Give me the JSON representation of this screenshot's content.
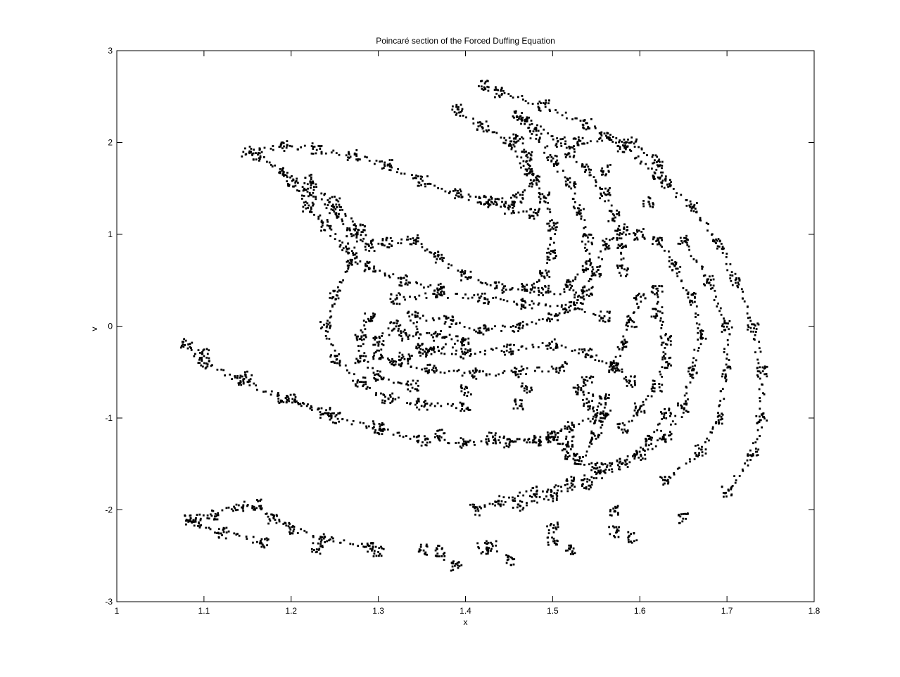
{
  "chart_data": {
    "type": "scatter",
    "title": "Poincaré section of the Forced Duffing Equation",
    "xlabel": "x",
    "ylabel": "v",
    "xlim": [
      1,
      1.8
    ],
    "ylim": [
      -3,
      3
    ],
    "xticks": [
      "1",
      "1.1",
      "1.2",
      "1.3",
      "1.4",
      "1.5",
      "1.6",
      "1.7",
      "1.8"
    ],
    "yticks": [
      "-3",
      "-2",
      "-1",
      "0",
      "1",
      "2",
      "3"
    ],
    "grid": false,
    "marker_color": "#000000",
    "background": "#ffffff",
    "series": [
      {
        "values": [
          [
            1.15,
            1.9
          ],
          [
            1.19,
            1.96
          ],
          [
            1.23,
            1.93
          ],
          [
            1.27,
            1.86
          ],
          [
            1.31,
            1.75
          ],
          [
            1.35,
            1.58
          ],
          [
            1.39,
            1.44
          ],
          [
            1.42,
            1.36
          ],
          [
            1.45,
            1.28
          ],
          [
            1.48,
            1.22
          ],
          [
            1.16,
            1.86
          ],
          [
            1.19,
            1.68
          ],
          [
            1.22,
            1.46
          ],
          [
            1.25,
            1.24
          ],
          [
            1.27,
            1.02
          ],
          [
            1.29,
            0.88
          ],
          [
            1.31,
            0.9
          ],
          [
            1.34,
            0.95
          ],
          [
            1.37,
            0.75
          ],
          [
            1.4,
            0.55
          ],
          [
            1.44,
            0.42
          ],
          [
            1.49,
            0.38
          ],
          [
            1.54,
            0.37
          ],
          [
            1.22,
            1.6
          ],
          [
            1.25,
            1.35
          ],
          [
            1.28,
            1.05
          ],
          [
            1.27,
            0.7
          ],
          [
            1.25,
            0.35
          ],
          [
            1.24,
            0.0
          ],
          [
            1.25,
            -0.35
          ],
          [
            1.28,
            -0.62
          ],
          [
            1.31,
            -0.78
          ],
          [
            1.35,
            -0.85
          ],
          [
            1.4,
            -0.88
          ],
          [
            1.46,
            -0.85
          ],
          [
            1.08,
            -0.2
          ],
          [
            1.1,
            -0.4
          ],
          [
            1.14,
            -0.58
          ],
          [
            1.19,
            -0.78
          ],
          [
            1.24,
            -0.95
          ],
          [
            1.3,
            -1.08
          ],
          [
            1.37,
            -1.18
          ],
          [
            1.43,
            -1.22
          ],
          [
            1.48,
            -1.25
          ],
          [
            1.52,
            -1.26
          ],
          [
            1.1,
            -0.3
          ],
          [
            1.15,
            -0.55
          ],
          [
            1.2,
            -0.8
          ],
          [
            1.25,
            -1.0
          ],
          [
            1.3,
            -1.12
          ],
          [
            1.35,
            -1.24
          ],
          [
            1.4,
            -1.28
          ],
          [
            1.45,
            -1.26
          ],
          [
            1.5,
            -1.2
          ],
          [
            1.08,
            -2.1
          ],
          [
            1.11,
            -2.05
          ],
          [
            1.14,
            -1.96
          ],
          [
            1.16,
            -1.95
          ],
          [
            1.18,
            -2.1
          ],
          [
            1.2,
            -2.2
          ],
          [
            1.24,
            -2.32
          ],
          [
            1.29,
            -2.4
          ],
          [
            1.35,
            -2.44
          ],
          [
            1.42,
            -2.42
          ],
          [
            1.5,
            -2.36
          ],
          [
            1.57,
            -2.24
          ],
          [
            1.09,
            -2.15
          ],
          [
            1.12,
            -2.25
          ],
          [
            1.17,
            -2.35
          ],
          [
            1.23,
            -2.42
          ],
          [
            1.3,
            -2.46
          ],
          [
            1.37,
            -2.45
          ],
          [
            1.39,
            -2.62
          ],
          [
            1.45,
            -2.55
          ],
          [
            1.52,
            -2.44
          ],
          [
            1.59,
            -2.3
          ],
          [
            1.65,
            -2.1
          ],
          [
            1.7,
            -1.8
          ],
          [
            1.73,
            -1.4
          ],
          [
            1.74,
            -1.0
          ],
          [
            1.74,
            -0.5
          ],
          [
            1.73,
            0.0
          ],
          [
            1.71,
            0.5
          ],
          [
            1.69,
            0.9
          ],
          [
            1.66,
            1.3
          ],
          [
            1.62,
            1.65
          ],
          [
            1.58,
            1.95
          ],
          [
            1.54,
            2.2
          ],
          [
            1.49,
            2.4
          ],
          [
            1.44,
            2.55
          ],
          [
            1.42,
            2.62
          ],
          [
            1.43,
            -2.4
          ],
          [
            1.5,
            -2.2
          ],
          [
            1.57,
            -2.0
          ],
          [
            1.63,
            -1.7
          ],
          [
            1.67,
            -1.35
          ],
          [
            1.69,
            -1.0
          ],
          [
            1.7,
            -0.5
          ],
          [
            1.7,
            0.0
          ],
          [
            1.68,
            0.5
          ],
          [
            1.65,
            0.95
          ],
          [
            1.61,
            1.35
          ],
          [
            1.56,
            1.7
          ],
          [
            1.51,
            2.0
          ],
          [
            1.47,
            2.25
          ],
          [
            1.41,
            -2.0
          ],
          [
            1.44,
            -1.9
          ],
          [
            1.48,
            -1.8
          ],
          [
            1.52,
            -1.7
          ],
          [
            1.56,
            -1.55
          ],
          [
            1.6,
            -1.4
          ],
          [
            1.63,
            -1.2
          ],
          [
            1.65,
            -0.9
          ],
          [
            1.66,
            -0.5
          ],
          [
            1.67,
            -0.1
          ],
          [
            1.66,
            0.3
          ],
          [
            1.64,
            0.65
          ],
          [
            1.62,
            0.95
          ],
          [
            1.46,
            -1.95
          ],
          [
            1.5,
            -1.85
          ],
          [
            1.54,
            -1.72
          ],
          [
            1.58,
            -1.5
          ],
          [
            1.61,
            -1.25
          ],
          [
            1.63,
            -0.95
          ],
          [
            1.6,
            1.0
          ],
          [
            1.58,
            1.05
          ],
          [
            1.56,
            0.9
          ],
          [
            1.55,
            0.6
          ],
          [
            1.53,
            0.3
          ],
          [
            1.5,
            0.1
          ],
          [
            1.46,
            0.0
          ],
          [
            1.42,
            -0.05
          ],
          [
            1.38,
            0.05
          ],
          [
            1.34,
            0.1
          ],
          [
            1.35,
            -0.25
          ],
          [
            1.4,
            -0.3
          ],
          [
            1.45,
            -0.25
          ],
          [
            1.5,
            -0.2
          ],
          [
            1.54,
            -0.3
          ],
          [
            1.57,
            -0.45
          ],
          [
            1.32,
            0.0
          ],
          [
            1.3,
            -0.15
          ],
          [
            1.3,
            -0.3
          ],
          [
            1.32,
            -0.4
          ],
          [
            1.36,
            -0.48
          ],
          [
            1.41,
            -0.52
          ],
          [
            1.46,
            -0.5
          ],
          [
            1.51,
            -0.45
          ],
          [
            1.33,
            -0.1
          ],
          [
            1.37,
            -0.1
          ],
          [
            1.4,
            -0.15
          ],
          [
            1.36,
            -0.28
          ],
          [
            1.33,
            -0.35
          ],
          [
            1.29,
            0.1
          ],
          [
            1.28,
            -0.1
          ],
          [
            1.28,
            -0.35
          ],
          [
            1.3,
            -0.55
          ],
          [
            1.34,
            -0.65
          ],
          [
            1.4,
            -0.7
          ],
          [
            1.47,
            -0.68
          ],
          [
            1.54,
            -0.6
          ],
          [
            1.32,
            0.3
          ],
          [
            1.37,
            0.35
          ],
          [
            1.42,
            0.3
          ],
          [
            1.47,
            0.25
          ],
          [
            1.52,
            0.2
          ],
          [
            1.56,
            0.1
          ],
          [
            1.53,
            -0.7
          ],
          [
            1.56,
            -0.8
          ],
          [
            1.55,
            -1.0
          ],
          [
            1.52,
            -1.1
          ],
          [
            1.5,
            -1.2
          ],
          [
            1.52,
            -1.4
          ],
          [
            1.55,
            -1.55
          ],
          [
            1.54,
            -0.85
          ],
          [
            1.56,
            -0.95
          ],
          [
            1.55,
            -1.2
          ],
          [
            1.53,
            -1.45
          ],
          [
            1.39,
            2.35
          ],
          [
            1.42,
            2.18
          ],
          [
            1.45,
            2.0
          ],
          [
            1.47,
            1.7
          ],
          [
            1.49,
            1.4
          ],
          [
            1.5,
            1.1
          ],
          [
            1.5,
            0.8
          ],
          [
            1.49,
            0.55
          ],
          [
            1.47,
            0.4
          ],
          [
            1.46,
            2.3
          ],
          [
            1.48,
            2.1
          ],
          [
            1.5,
            1.8
          ],
          [
            1.52,
            1.55
          ],
          [
            1.53,
            1.25
          ],
          [
            1.54,
            0.95
          ],
          [
            1.54,
            0.65
          ],
          [
            1.52,
            0.45
          ],
          [
            1.52,
            1.9
          ],
          [
            1.54,
            1.7
          ],
          [
            1.56,
            1.45
          ],
          [
            1.57,
            1.2
          ],
          [
            1.58,
            0.9
          ],
          [
            1.58,
            0.6
          ],
          [
            1.53,
            2.0
          ],
          [
            1.56,
            2.05
          ],
          [
            1.59,
            2.0
          ],
          [
            1.62,
            1.8
          ],
          [
            1.63,
            1.55
          ],
          [
            1.46,
            2.05
          ],
          [
            1.47,
            1.85
          ],
          [
            1.48,
            1.6
          ],
          [
            1.46,
            1.4
          ],
          [
            1.43,
            1.35
          ],
          [
            1.2,
            1.58
          ],
          [
            1.22,
            1.3
          ],
          [
            1.24,
            1.1
          ],
          [
            1.26,
            0.85
          ],
          [
            1.29,
            0.65
          ],
          [
            1.33,
            0.5
          ],
          [
            1.37,
            0.4
          ],
          [
            1.62,
            0.4
          ],
          [
            1.62,
            0.15
          ],
          [
            1.63,
            -0.15
          ],
          [
            1.63,
            -0.4
          ],
          [
            1.62,
            -0.65
          ],
          [
            1.6,
            -0.9
          ],
          [
            1.58,
            -1.1
          ],
          [
            1.6,
            0.3
          ],
          [
            1.59,
            0.05
          ],
          [
            1.58,
            -0.2
          ],
          [
            1.57,
            -0.45
          ],
          [
            1.59,
            -0.6
          ]
        ]
      }
    ]
  }
}
